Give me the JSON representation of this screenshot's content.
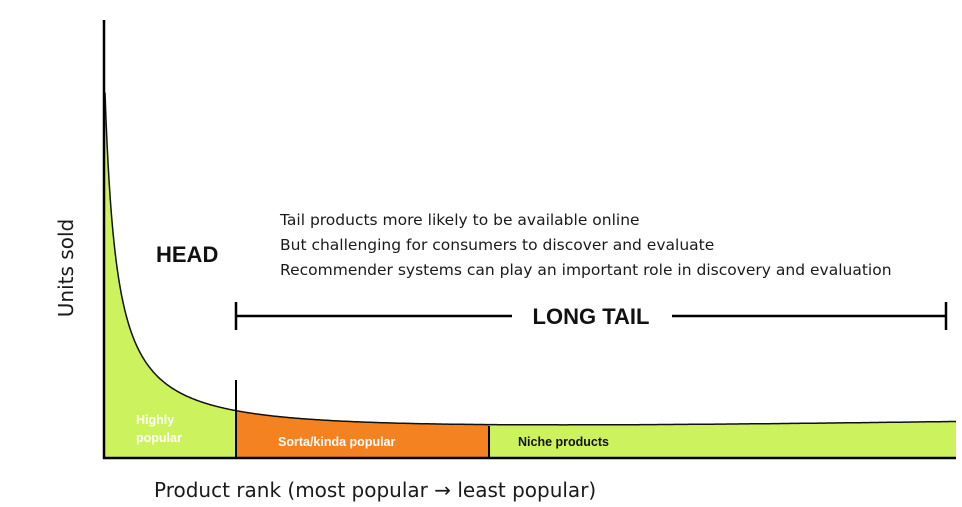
{
  "axes": {
    "y_title": "Units sold",
    "x_title": "Product rank (most popular → least popular)"
  },
  "regions": {
    "head": "HEAD",
    "long_tail": "LONG TAIL"
  },
  "notes": [
    "Tail products more likely to be available online",
    "But challenging for consumers to discover and evaluate",
    "Recommender systems can play an important role in discovery and evaluation"
  ],
  "segments": {
    "highly_popular": [
      "Highly",
      "popular"
    ],
    "sorta_popular": "Sorta/kinda popular",
    "niche": "Niche products"
  },
  "colors": {
    "head_fill": "#ccf25e",
    "middle_fill": "#f58220",
    "tail_fill": "#ccf25e",
    "axis": "#000000"
  }
}
